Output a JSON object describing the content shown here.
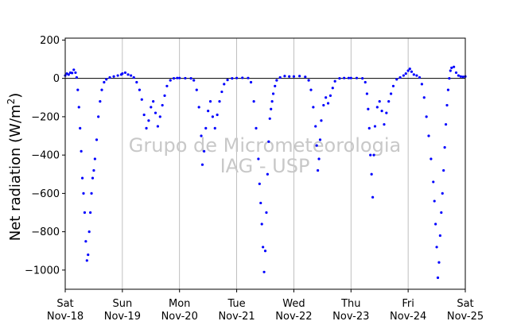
{
  "chart_data": {
    "type": "scatter",
    "title": "",
    "ylabel_prefix": "Net radiation (W/m",
    "ylabel_sup": "2",
    "ylabel_suffix": ")",
    "xlabel": "",
    "ylim": [
      -1100,
      210
    ],
    "xlim": [
      0,
      7
    ],
    "yticks": [
      200,
      0,
      -200,
      -400,
      -600,
      -800,
      -1000
    ],
    "ytick_labels": [
      "200",
      "0",
      "−200",
      "−400",
      "−600",
      "−800",
      "−1000"
    ],
    "xticks": [
      {
        "day": 0,
        "weekday": "Sat",
        "date": "Nov-18"
      },
      {
        "day": 1,
        "weekday": "Sun",
        "date": "Nov-19"
      },
      {
        "day": 2,
        "weekday": "Mon",
        "date": "Nov-20"
      },
      {
        "day": 3,
        "weekday": "Tue",
        "date": "Nov-21"
      },
      {
        "day": 4,
        "weekday": "Wed",
        "date": "Nov-22"
      },
      {
        "day": 5,
        "weekday": "Thu",
        "date": "Nov-23"
      },
      {
        "day": 6,
        "weekday": "Fri",
        "date": "Nov-24"
      },
      {
        "day": 7,
        "weekday": "Sat",
        "date": "Nov-25"
      }
    ],
    "vertical_grid": true,
    "zero_line": true,
    "marker_color": "#0000ff",
    "watermark_line1": "Grupo de Micrometeorologia",
    "watermark_line2": "IAG - USP",
    "series": [
      {
        "values": [
          [
            0.0,
            15
          ],
          [
            0.03,
            25
          ],
          [
            0.06,
            20
          ],
          [
            0.09,
            30
          ],
          [
            0.12,
            28
          ],
          [
            0.15,
            45
          ],
          [
            0.18,
            30
          ],
          [
            0.2,
            5
          ],
          [
            0.22,
            -60
          ],
          [
            0.24,
            -150
          ],
          [
            0.26,
            -260
          ],
          [
            0.28,
            -380
          ],
          [
            0.3,
            -520
          ],
          [
            0.32,
            -600
          ],
          [
            0.34,
            -700
          ],
          [
            0.36,
            -850
          ],
          [
            0.38,
            -950
          ],
          [
            0.4,
            -920
          ],
          [
            0.42,
            -800
          ],
          [
            0.44,
            -700
          ],
          [
            0.46,
            -600
          ],
          [
            0.48,
            -520
          ],
          [
            0.5,
            -480
          ],
          [
            0.52,
            -420
          ],
          [
            0.55,
            -320
          ],
          [
            0.58,
            -200
          ],
          [
            0.61,
            -120
          ],
          [
            0.64,
            -60
          ],
          [
            0.68,
            -20
          ],
          [
            0.72,
            -5
          ],
          [
            0.78,
            5
          ],
          [
            0.85,
            10
          ],
          [
            0.92,
            15
          ],
          [
            0.98,
            20
          ],
          [
            1.0,
            25
          ],
          [
            1.05,
            30
          ],
          [
            1.1,
            20
          ],
          [
            1.15,
            15
          ],
          [
            1.2,
            5
          ],
          [
            1.25,
            -20
          ],
          [
            1.3,
            -60
          ],
          [
            1.34,
            -110
          ],
          [
            1.38,
            -190
          ],
          [
            1.42,
            -260
          ],
          [
            1.46,
            -220
          ],
          [
            1.5,
            -150
          ],
          [
            1.54,
            -120
          ],
          [
            1.58,
            -180
          ],
          [
            1.62,
            -250
          ],
          [
            1.66,
            -200
          ],
          [
            1.7,
            -140
          ],
          [
            1.74,
            -90
          ],
          [
            1.78,
            -40
          ],
          [
            1.84,
            -10
          ],
          [
            1.9,
            0
          ],
          [
            1.96,
            2
          ],
          [
            2.0,
            2
          ],
          [
            2.1,
            1
          ],
          [
            2.2,
            0
          ],
          [
            2.25,
            -10
          ],
          [
            2.3,
            -60
          ],
          [
            2.34,
            -150
          ],
          [
            2.38,
            -300
          ],
          [
            2.4,
            -450
          ],
          [
            2.43,
            -380
          ],
          [
            2.46,
            -260
          ],
          [
            2.5,
            -170
          ],
          [
            2.54,
            -120
          ],
          [
            2.58,
            -200
          ],
          [
            2.62,
            -260
          ],
          [
            2.66,
            -190
          ],
          [
            2.7,
            -120
          ],
          [
            2.74,
            -70
          ],
          [
            2.78,
            -30
          ],
          [
            2.84,
            -8
          ],
          [
            2.92,
            0
          ],
          [
            3.0,
            2
          ],
          [
            3.1,
            3
          ],
          [
            3.2,
            2
          ],
          [
            3.25,
            -20
          ],
          [
            3.3,
            -120
          ],
          [
            3.34,
            -260
          ],
          [
            3.38,
            -420
          ],
          [
            3.4,
            -550
          ],
          [
            3.42,
            -650
          ],
          [
            3.44,
            -760
          ],
          [
            3.46,
            -880
          ],
          [
            3.48,
            -1010
          ],
          [
            3.5,
            -900
          ],
          [
            3.52,
            -700
          ],
          [
            3.54,
            -500
          ],
          [
            3.56,
            -330
          ],
          [
            3.58,
            -210
          ],
          [
            3.6,
            -160
          ],
          [
            3.62,
            -120
          ],
          [
            3.64,
            -80
          ],
          [
            3.67,
            -40
          ],
          [
            3.7,
            -10
          ],
          [
            3.76,
            5
          ],
          [
            3.84,
            12
          ],
          [
            3.92,
            10
          ],
          [
            4.0,
            10
          ],
          [
            4.1,
            12
          ],
          [
            4.2,
            8
          ],
          [
            4.26,
            -10
          ],
          [
            4.3,
            -60
          ],
          [
            4.34,
            -150
          ],
          [
            4.38,
            -250
          ],
          [
            4.4,
            -350
          ],
          [
            4.42,
            -480
          ],
          [
            4.44,
            -420
          ],
          [
            4.46,
            -320
          ],
          [
            4.48,
            -220
          ],
          [
            4.52,
            -140
          ],
          [
            4.56,
            -100
          ],
          [
            4.6,
            -130
          ],
          [
            4.64,
            -90
          ],
          [
            4.68,
            -50
          ],
          [
            4.72,
            -15
          ],
          [
            4.8,
            0
          ],
          [
            4.88,
            2
          ],
          [
            4.96,
            2
          ],
          [
            5.0,
            2
          ],
          [
            5.1,
            2
          ],
          [
            5.2,
            0
          ],
          [
            5.25,
            -20
          ],
          [
            5.28,
            -80
          ],
          [
            5.3,
            -160
          ],
          [
            5.32,
            -260
          ],
          [
            5.34,
            -400
          ],
          [
            5.36,
            -500
          ],
          [
            5.38,
            -620
          ],
          [
            5.4,
            -400
          ],
          [
            5.42,
            -250
          ],
          [
            5.46,
            -150
          ],
          [
            5.5,
            -120
          ],
          [
            5.54,
            -170
          ],
          [
            5.58,
            -240
          ],
          [
            5.62,
            -180
          ],
          [
            5.66,
            -120
          ],
          [
            5.7,
            -80
          ],
          [
            5.74,
            -40
          ],
          [
            5.8,
            -5
          ],
          [
            5.86,
            5
          ],
          [
            5.92,
            15
          ],
          [
            5.96,
            25
          ],
          [
            6.0,
            40
          ],
          [
            6.03,
            50
          ],
          [
            6.06,
            35
          ],
          [
            6.1,
            20
          ],
          [
            6.15,
            15
          ],
          [
            6.2,
            5
          ],
          [
            6.24,
            -30
          ],
          [
            6.28,
            -100
          ],
          [
            6.32,
            -200
          ],
          [
            6.36,
            -300
          ],
          [
            6.4,
            -420
          ],
          [
            6.44,
            -540
          ],
          [
            6.46,
            -640
          ],
          [
            6.48,
            -760
          ],
          [
            6.5,
            -880
          ],
          [
            6.52,
            -1040
          ],
          [
            6.54,
            -960
          ],
          [
            6.56,
            -820
          ],
          [
            6.58,
            -700
          ],
          [
            6.6,
            -600
          ],
          [
            6.62,
            -480
          ],
          [
            6.64,
            -360
          ],
          [
            6.66,
            -240
          ],
          [
            6.68,
            -140
          ],
          [
            6.7,
            -60
          ],
          [
            6.72,
            0
          ],
          [
            6.74,
            40
          ],
          [
            6.76,
            55
          ],
          [
            6.8,
            60
          ],
          [
            6.84,
            30
          ],
          [
            6.88,
            15
          ],
          [
            6.92,
            10
          ],
          [
            6.96,
            8
          ],
          [
            7.0,
            10
          ]
        ]
      }
    ]
  }
}
